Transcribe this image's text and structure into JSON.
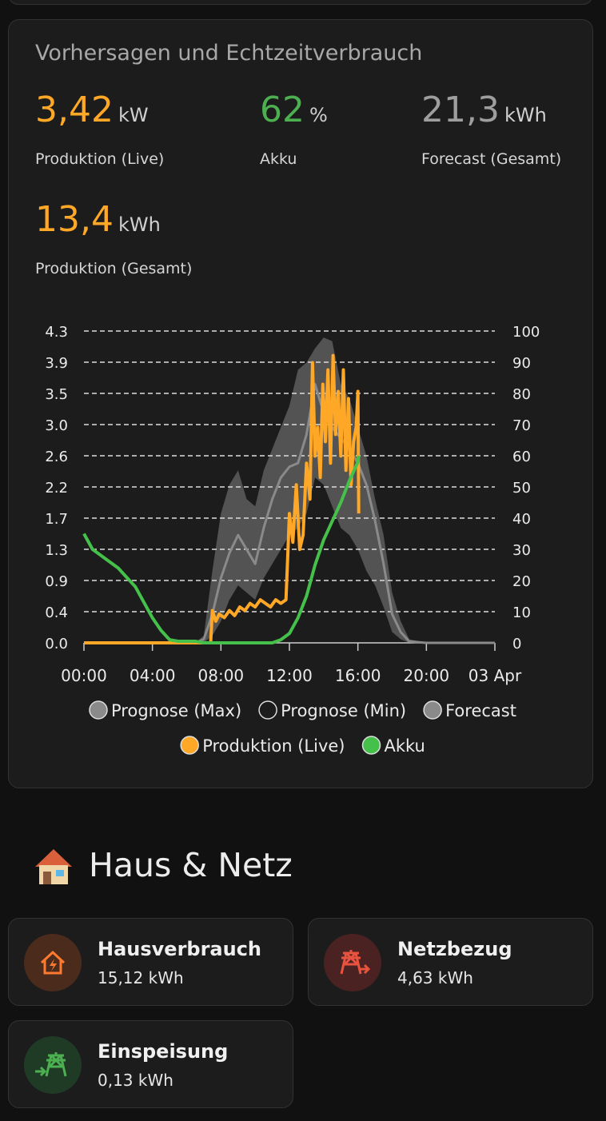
{
  "card": {
    "title": "Vorhersagen und Echtzeitverbrauch",
    "stats": [
      {
        "value": "3,42",
        "unit": "kW",
        "label": "Produktion (Live)",
        "color": "#ffa726"
      },
      {
        "value": "62",
        "unit": "%",
        "label": "Akku",
        "color": "#4caf50"
      },
      {
        "value": "21,3",
        "unit": "kWh",
        "label": "Forecast (Gesamt)",
        "color": "#9e9e9e"
      },
      {
        "value": "13,4",
        "unit": "kWh",
        "label": "Produktion (Gesamt)",
        "color": "#ffa726"
      }
    ]
  },
  "chart_data": {
    "type": "line",
    "xlim": [
      0,
      24
    ],
    "xticks": [
      {
        "value": 0,
        "label": "00:00"
      },
      {
        "value": 4,
        "label": "04:00"
      },
      {
        "value": 8,
        "label": "08:00"
      },
      {
        "value": 12,
        "label": "12:00"
      },
      {
        "value": 16,
        "label": "16:00"
      },
      {
        "value": 20,
        "label": "20:00"
      },
      {
        "value": 24,
        "label": "03 Apr"
      }
    ],
    "ylim": [
      0,
      4.34
    ],
    "yticks": [
      {
        "value": 0,
        "label": "0.0"
      },
      {
        "value": 0.434,
        "label": "0.4"
      },
      {
        "value": 0.868,
        "label": "0.9"
      },
      {
        "value": 1.302,
        "label": "1.3"
      },
      {
        "value": 1.736,
        "label": "1.7"
      },
      {
        "value": 2.17,
        "label": "2.2"
      },
      {
        "value": 2.604,
        "label": "2.6"
      },
      {
        "value": 3.038,
        "label": "3.0"
      },
      {
        "value": 3.472,
        "label": "3.5"
      },
      {
        "value": 3.906,
        "label": "3.9"
      },
      {
        "value": 4.34,
        "label": "4.3"
      }
    ],
    "y2lim": [
      0,
      100
    ],
    "y2ticks": [
      0,
      10,
      20,
      30,
      40,
      50,
      60,
      70,
      80,
      90,
      100
    ],
    "grid": true,
    "series": [
      {
        "name": "Prognose (Max)",
        "color": "#8a8a8a",
        "style": "area",
        "x": [
          0,
          6,
          6.5,
          7,
          7.5,
          8,
          8.5,
          9,
          9.5,
          10,
          10.5,
          11,
          11.5,
          12,
          12.5,
          13,
          13.5,
          14,
          14.5,
          15,
          15.5,
          16,
          16.5,
          17,
          17.5,
          18,
          18.5,
          19,
          20,
          24
        ],
        "values": [
          0,
          0,
          0,
          0.1,
          1.0,
          1.8,
          2.2,
          2.4,
          2.0,
          1.9,
          2.4,
          2.7,
          3.0,
          3.3,
          3.8,
          3.9,
          4.1,
          4.25,
          4.2,
          3.6,
          3.4,
          3.0,
          2.6,
          2.0,
          1.5,
          0.7,
          0.3,
          0.05,
          0,
          0
        ]
      },
      {
        "name": "Prognose (Min)",
        "color": "#1c1c1c",
        "style": "area",
        "x": [
          0,
          6,
          6.5,
          7,
          7.5,
          8,
          8.5,
          9,
          9.5,
          10,
          10.5,
          11,
          11.5,
          12,
          12.5,
          13,
          13.5,
          14,
          14.5,
          15,
          15.5,
          16,
          16.5,
          17,
          17.5,
          18,
          18.5,
          19,
          20,
          24
        ],
        "values": [
          0,
          0,
          0,
          0,
          0.1,
          0.3,
          0.6,
          0.8,
          0.7,
          0.6,
          0.9,
          1.1,
          1.3,
          1.5,
          1.6,
          1.8,
          2.3,
          2.2,
          1.9,
          1.6,
          1.5,
          1.3,
          1.0,
          0.8,
          0.5,
          0.15,
          0.05,
          0,
          0,
          0
        ]
      },
      {
        "name": "Forecast",
        "color": "#8a8a8a",
        "style": "line",
        "x": [
          0,
          6,
          6.5,
          7,
          7.5,
          8,
          8.5,
          9,
          9.5,
          10,
          10.5,
          11,
          11.5,
          12,
          12.5,
          13,
          13.5,
          14,
          14.5,
          15,
          15.5,
          16,
          16.5,
          17,
          17.5,
          18,
          18.5,
          19,
          20,
          24
        ],
        "values": [
          0,
          0,
          0,
          0.05,
          0.4,
          0.9,
          1.25,
          1.5,
          1.3,
          1.1,
          1.6,
          2.0,
          2.3,
          2.45,
          2.5,
          2.9,
          3.6,
          3.2,
          3.0,
          2.85,
          2.7,
          2.5,
          2.2,
          1.7,
          1.1,
          0.4,
          0.15,
          0.02,
          0,
          0
        ]
      },
      {
        "name": "Produktion (Live)",
        "color": "#ffa726",
        "style": "line",
        "x": [
          0,
          7.4,
          7.5,
          7.7,
          7.9,
          8.2,
          8.5,
          8.8,
          9.1,
          9.4,
          9.7,
          10,
          10.3,
          10.6,
          10.9,
          11.2,
          11.5,
          11.8,
          11.9,
          12,
          12.2,
          12.4,
          12.6,
          12.8,
          13,
          13.2,
          13.35,
          13.5,
          13.65,
          13.8,
          13.95,
          14.1,
          14.25,
          14.4,
          14.55,
          14.7,
          14.85,
          15,
          15.15,
          15.3,
          15.45,
          15.6,
          15.75,
          15.9,
          16,
          16.05
        ],
        "values": [
          0,
          0,
          0.45,
          0.3,
          0.4,
          0.35,
          0.45,
          0.38,
          0.5,
          0.45,
          0.55,
          0.5,
          0.6,
          0.55,
          0.5,
          0.6,
          0.55,
          0.6,
          1.2,
          1.8,
          1.4,
          2.2,
          1.3,
          1.5,
          2.5,
          2.0,
          3.9,
          2.6,
          3.0,
          2.3,
          3.6,
          2.8,
          3.8,
          2.5,
          4.0,
          2.9,
          3.5,
          2.6,
          3.8,
          2.4,
          3.4,
          2.2,
          2.8,
          3.0,
          3.5,
          1.8
        ]
      },
      {
        "name": "Akku",
        "color": "#45c04a",
        "style": "line",
        "axis": "y2",
        "x": [
          0,
          0.5,
          1,
          1.5,
          2,
          2.5,
          3,
          3.5,
          4,
          4.5,
          5,
          5.5,
          6,
          6.5,
          7,
          11,
          11.5,
          12,
          12.5,
          13,
          13.5,
          14,
          14.5,
          15,
          15.5,
          16,
          16.05
        ],
        "values": [
          35,
          30,
          28,
          26,
          24,
          21,
          18,
          13,
          8,
          4,
          1,
          0.5,
          0.5,
          0.5,
          0,
          0,
          1,
          3,
          8,
          15,
          25,
          33,
          39,
          45,
          52,
          58,
          60
        ]
      }
    ]
  },
  "section": {
    "title": "Haus & Netz",
    "tiles": [
      {
        "name": "Hausverbrauch",
        "value": "15,12 kWh"
      },
      {
        "name": "Netzbezug",
        "value": "4,63 kWh"
      },
      {
        "name": "Einspeisung",
        "value": "0,13 kWh"
      }
    ]
  }
}
